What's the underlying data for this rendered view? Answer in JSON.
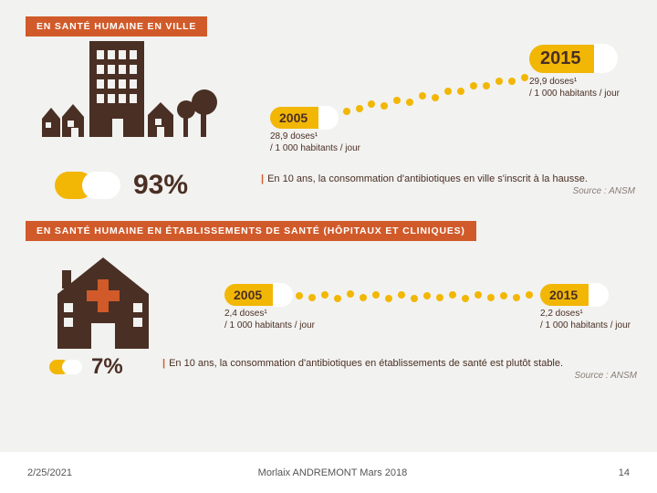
{
  "colors": {
    "banner_bg": "#d15a2a",
    "banner_text": "#ffffff",
    "pill_yellow": "#f2b705",
    "pill_white": "#ffffff",
    "dark_brown": "#4a2f24",
    "slide_bg": "#f2f2f0",
    "src_gray": "#8a7e78"
  },
  "top": {
    "banner": "EN SANTÉ HUMAINE EN VILLE",
    "percent": "93%",
    "year_2005": {
      "year": "2005",
      "doses": "28,9 doses¹",
      "per": "/ 1 000 habitants / jour"
    },
    "year_2015": {
      "year": "2015",
      "doses": "29,9 doses¹",
      "per": "/ 1 000 habitants / jour"
    },
    "caption": "En 10 ans, la consommation d'antibiotiques en ville s'inscrit à la hausse.",
    "source": "Source : ANSM",
    "dot_positions": [
      [
        0,
        0
      ],
      [
        14,
        -3
      ],
      [
        27,
        -8
      ],
      [
        41,
        -6
      ],
      [
        55,
        -12
      ],
      [
        69,
        -10
      ],
      [
        83,
        -17
      ],
      [
        97,
        -15
      ],
      [
        111,
        -22
      ],
      [
        125,
        -22
      ],
      [
        139,
        -28
      ],
      [
        153,
        -28
      ],
      [
        167,
        -33
      ],
      [
        181,
        -33
      ],
      [
        195,
        -37
      ]
    ]
  },
  "bottom": {
    "banner": "EN SANTÉ HUMAINE EN ÉTABLISSEMENTS DE SANTÉ (HÔPITAUX ET CLINIQUES)",
    "percent": "7%",
    "year_2005": {
      "year": "2005",
      "doses": "2,4 doses¹",
      "per": "/ 1 000 habitants / jour"
    },
    "year_2015": {
      "year": "2015",
      "doses": "2,2 doses¹",
      "per": "/ 1 000 habitants / jour"
    },
    "caption": "En 10 ans, la consommation d'antibiotiques en établissements de santé est plutôt stable.",
    "source": "Source : ANSM",
    "dot_positions": [
      [
        0,
        0
      ],
      [
        14,
        2
      ],
      [
        28,
        -1
      ],
      [
        42,
        3
      ],
      [
        56,
        -2
      ],
      [
        70,
        2
      ],
      [
        84,
        -1
      ],
      [
        98,
        3
      ],
      [
        112,
        -1
      ],
      [
        126,
        3
      ],
      [
        140,
        0
      ],
      [
        154,
        2
      ],
      [
        168,
        -1
      ],
      [
        182,
        3
      ],
      [
        196,
        -1
      ],
      [
        210,
        2
      ],
      [
        224,
        0
      ],
      [
        238,
        2
      ],
      [
        252,
        -1
      ]
    ]
  },
  "footer": {
    "date": "2/25/2021",
    "center": "Morlaix ANDREMONT Mars 2018",
    "page": "14"
  }
}
